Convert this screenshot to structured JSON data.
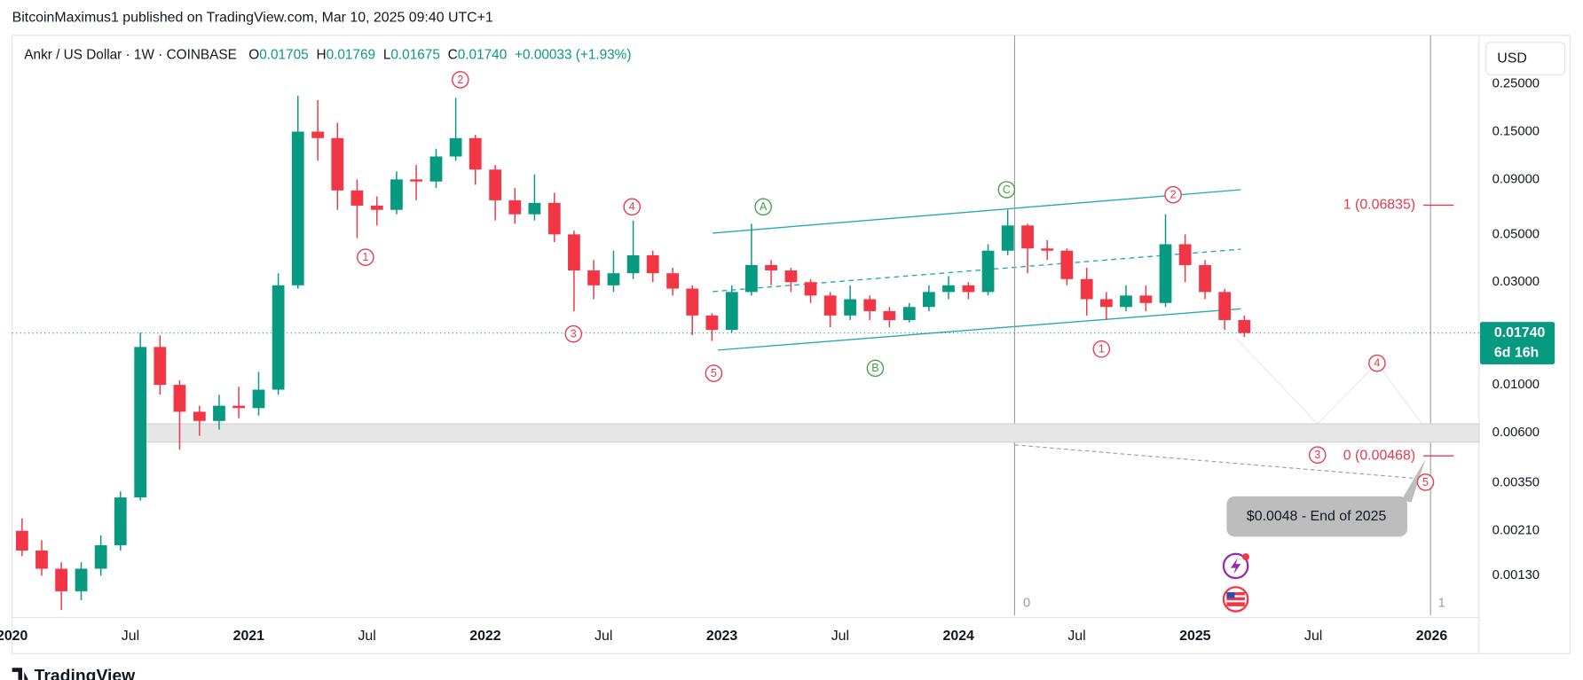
{
  "header": "BitcoinMaximus1 published on TradingView.com, Mar 10, 2025 09:40 UTC+1",
  "legend": {
    "symbol": "Ankr / US Dollar · 1W · COINBASE",
    "items": [
      {
        "key": "O",
        "value": "0.01705"
      },
      {
        "key": "H",
        "value": "0.01769"
      },
      {
        "key": "L",
        "value": "0.01675"
      },
      {
        "key": "C",
        "value": "0.01740"
      }
    ],
    "change": "+0.00033 (+1.93%)"
  },
  "currency": "USD",
  "brand": "TradingView",
  "chart_data": {
    "type": "candlestick",
    "up_color": "#089981",
    "down_color": "#f23645",
    "log_scale": true,
    "grid": false,
    "xlim": [
      2020,
      2026.2
    ],
    "ylim": [
      0.00085,
      0.42
    ],
    "xticks": [
      2020,
      {
        "value": 2020.5,
        "label": "Jul"
      },
      2021,
      {
        "value": 2021.5,
        "label": "Jul"
      },
      2022,
      {
        "value": 2022.5,
        "label": "Jul"
      },
      2023,
      {
        "value": 2023.5,
        "label": "Jul"
      },
      2024,
      {
        "value": 2024.5,
        "label": "Jul"
      },
      2025,
      {
        "value": 2025.5,
        "label": "Jul"
      },
      2026
    ],
    "yticks": [
      {
        "value": 0.25,
        "label": "0.25000"
      },
      {
        "value": 0.15,
        "label": "0.15000"
      },
      {
        "value": 0.09,
        "label": "0.09000"
      },
      {
        "value": 0.05,
        "label": "0.05000"
      },
      {
        "value": 0.03,
        "label": "0.03000"
      },
      {
        "value": 0.01,
        "label": "0.01000"
      },
      {
        "value": 0.006,
        "label": "0.00600"
      },
      {
        "value": 0.0035,
        "label": "0.00350"
      },
      {
        "value": 0.0021,
        "label": "0.00210"
      },
      {
        "value": 0.0013,
        "label": "0.00130"
      }
    ],
    "x": [
      2020.042,
      2020.125,
      2020.208,
      2020.292,
      2020.375,
      2020.458,
      2020.542,
      2020.625,
      2020.708,
      2020.792,
      2020.875,
      2020.958,
      2021.042,
      2021.125,
      2021.208,
      2021.292,
      2021.375,
      2021.458,
      2021.542,
      2021.625,
      2021.708,
      2021.792,
      2021.875,
      2021.958,
      2022.042,
      2022.125,
      2022.208,
      2022.292,
      2022.375,
      2022.458,
      2022.542,
      2022.625,
      2022.708,
      2022.792,
      2022.875,
      2022.958,
      2023.042,
      2023.125,
      2023.208,
      2023.292,
      2023.375,
      2023.458,
      2023.542,
      2023.625,
      2023.708,
      2023.792,
      2023.875,
      2023.958,
      2024.042,
      2024.125,
      2024.208,
      2024.292,
      2024.375,
      2024.458,
      2024.542,
      2024.625,
      2024.708,
      2024.792,
      2024.875,
      2024.958,
      2025.042,
      2025.125,
      2025.208
    ],
    "open": [
      0.0021,
      0.0017,
      0.0014,
      0.0011,
      0.0014,
      0.0018,
      0.003,
      0.015,
      0.01,
      0.0075,
      0.0068,
      0.008,
      0.0078,
      0.0095,
      0.029,
      0.15,
      0.14,
      0.08,
      0.068,
      0.065,
      0.09,
      0.088,
      0.115,
      0.14,
      0.1,
      0.072,
      0.062,
      0.07,
      0.05,
      0.034,
      0.029,
      0.033,
      0.04,
      0.033,
      0.028,
      0.021,
      0.018,
      0.027,
      0.036,
      0.034,
      0.03,
      0.026,
      0.021,
      0.025,
      0.022,
      0.02,
      0.023,
      0.027,
      0.029,
      0.027,
      0.042,
      0.055,
      0.043,
      0.042,
      0.031,
      0.025,
      0.023,
      0.026,
      0.024,
      0.045,
      0.036,
      0.027,
      0.02
    ],
    "high": [
      0.0024,
      0.0019,
      0.0015,
      0.0015,
      0.002,
      0.0032,
      0.0175,
      0.017,
      0.0105,
      0.008,
      0.009,
      0.0098,
      0.0115,
      0.033,
      0.22,
      0.21,
      0.165,
      0.09,
      0.075,
      0.098,
      0.105,
      0.125,
      0.215,
      0.145,
      0.105,
      0.082,
      0.095,
      0.078,
      0.052,
      0.038,
      0.042,
      0.058,
      0.042,
      0.035,
      0.029,
      0.0215,
      0.029,
      0.056,
      0.038,
      0.035,
      0.031,
      0.027,
      0.029,
      0.026,
      0.023,
      0.024,
      0.029,
      0.032,
      0.03,
      0.045,
      0.065,
      0.056,
      0.047,
      0.043,
      0.035,
      0.027,
      0.029,
      0.029,
      0.062,
      0.05,
      0.038,
      0.028,
      0.021
    ],
    "low": [
      0.0016,
      0.0013,
      0.0009,
      0.001,
      0.0013,
      0.0017,
      0.0029,
      0.009,
      0.005,
      0.0058,
      0.0062,
      0.007,
      0.0072,
      0.009,
      0.028,
      0.11,
      0.065,
      0.048,
      0.055,
      0.062,
      0.072,
      0.082,
      0.11,
      0.085,
      0.058,
      0.056,
      0.058,
      0.046,
      0.022,
      0.025,
      0.027,
      0.031,
      0.03,
      0.026,
      0.017,
      0.016,
      0.0175,
      0.026,
      0.029,
      0.027,
      0.024,
      0.0185,
      0.02,
      0.02,
      0.0185,
      0.0195,
      0.022,
      0.025,
      0.025,
      0.026,
      0.04,
      0.033,
      0.038,
      0.029,
      0.021,
      0.02,
      0.022,
      0.022,
      0.023,
      0.03,
      0.025,
      0.018,
      0.0167
    ],
    "close": [
      0.0017,
      0.0014,
      0.0011,
      0.0014,
      0.0018,
      0.003,
      0.015,
      0.01,
      0.0075,
      0.0068,
      0.008,
      0.0078,
      0.0095,
      0.029,
      0.15,
      0.14,
      0.08,
      0.068,
      0.065,
      0.09,
      0.088,
      0.115,
      0.14,
      0.1,
      0.072,
      0.062,
      0.07,
      0.05,
      0.034,
      0.029,
      0.033,
      0.04,
      0.033,
      0.028,
      0.021,
      0.018,
      0.027,
      0.036,
      0.034,
      0.03,
      0.026,
      0.021,
      0.025,
      0.022,
      0.02,
      0.023,
      0.027,
      0.029,
      0.027,
      0.042,
      0.055,
      0.043,
      0.042,
      0.031,
      0.025,
      0.023,
      0.026,
      0.024,
      0.045,
      0.036,
      0.027,
      0.02,
      0.0174
    ],
    "last_price": {
      "value": 0.0174,
      "label": "0.01740"
    },
    "countdown": "6d 16h",
    "support_zone": [
      0.00542,
      0.00659
    ],
    "fib_levels": [
      {
        "value": 0.06835,
        "label": "1 (0.06835)"
      },
      {
        "value": 0.00468,
        "label": "0 (0.00468)"
      }
    ],
    "fib_color": "#e53950",
    "time_cycle_labels": [
      "0",
      "1"
    ],
    "callout": "$0.0048 - End of 2025",
    "wave_labels": [
      {
        "text": "1",
        "color": "#e53950"
      },
      {
        "text": "2",
        "color": "#e53950"
      },
      {
        "text": "3",
        "color": "#e53950"
      },
      {
        "text": "4",
        "color": "#e53950"
      },
      {
        "text": "5",
        "color": "#e53950"
      },
      {
        "text": "A",
        "color": "#43a047"
      },
      {
        "text": "B",
        "color": "#43a047"
      },
      {
        "text": "C",
        "color": "#43a047"
      },
      {
        "text": "1",
        "color": "#e53950"
      },
      {
        "text": "2",
        "color": "#e53950"
      },
      {
        "text": "4",
        "color": "#e53950"
      },
      {
        "text": "3",
        "color": "#e53950"
      },
      {
        "text": "5",
        "color": "#e53950"
      }
    ]
  }
}
